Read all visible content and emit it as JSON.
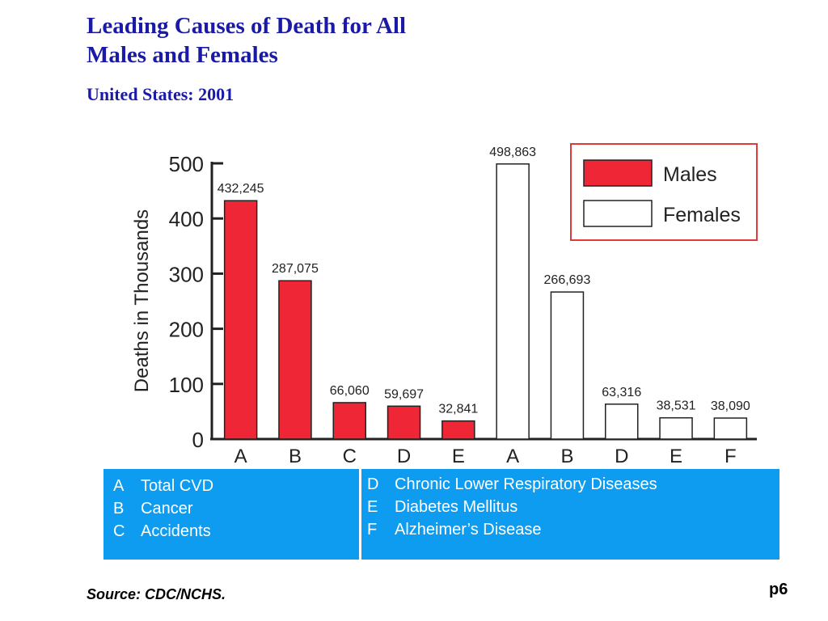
{
  "title_line1": "Leading Causes of Death for All",
  "title_line2": "Males and Females",
  "subtitle": "United States: 2001",
  "chart_data": {
    "type": "bar",
    "title": "Leading Causes of Death for All Males and Females",
    "subtitle": "United States: 2001",
    "ylabel": "Deaths in Thousands",
    "ylim": [
      0,
      500
    ],
    "yticks": [
      "0",
      "100",
      "200",
      "300",
      "400",
      "500"
    ],
    "bars": [
      {
        "category": "A",
        "series": "Males",
        "value": 432.245,
        "label": "432,245"
      },
      {
        "category": "B",
        "series": "Males",
        "value": 287.075,
        "label": "287,075"
      },
      {
        "category": "C",
        "series": "Males",
        "value": 66.06,
        "label": "66,060"
      },
      {
        "category": "D",
        "series": "Males",
        "value": 59.697,
        "label": "59,697"
      },
      {
        "category": "E",
        "series": "Males",
        "value": 32.841,
        "label": "32,841"
      },
      {
        "category": "A",
        "series": "Females",
        "value": 498.863,
        "label": "498,863"
      },
      {
        "category": "B",
        "series": "Females",
        "value": 266.693,
        "label": "266,693"
      },
      {
        "category": "D",
        "series": "Females",
        "value": 63.316,
        "label": "63,316"
      },
      {
        "category": "E",
        "series": "Females",
        "value": 38.531,
        "label": "38,531"
      },
      {
        "category": "F",
        "series": "Females",
        "value": 38.09,
        "label": "38,090"
      }
    ],
    "legend": [
      {
        "name": "Males",
        "color": "#ee2636"
      },
      {
        "name": "Females",
        "color": "#ffffff"
      }
    ],
    "legend_position": "top-right",
    "grid": false
  },
  "colors": {
    "males": "#ee2636",
    "females": "#ffffff",
    "legend_border": "#e03a3a",
    "title": "#1a1aa6",
    "key_panel": "#0e9cf0"
  },
  "key_left": [
    {
      "code": "A",
      "label": "Total CVD"
    },
    {
      "code": "B",
      "label": "Cancer"
    },
    {
      "code": "C",
      "label": "Accidents"
    }
  ],
  "key_right": [
    {
      "code": "D",
      "label": "Chronic Lower Respiratory Diseases"
    },
    {
      "code": "E",
      "label": "Diabetes Mellitus"
    },
    {
      "code": "F",
      "label": "Alzheimer’s Disease"
    }
  ],
  "source": "Source:   CDC/NCHS.",
  "page_number": "p6"
}
